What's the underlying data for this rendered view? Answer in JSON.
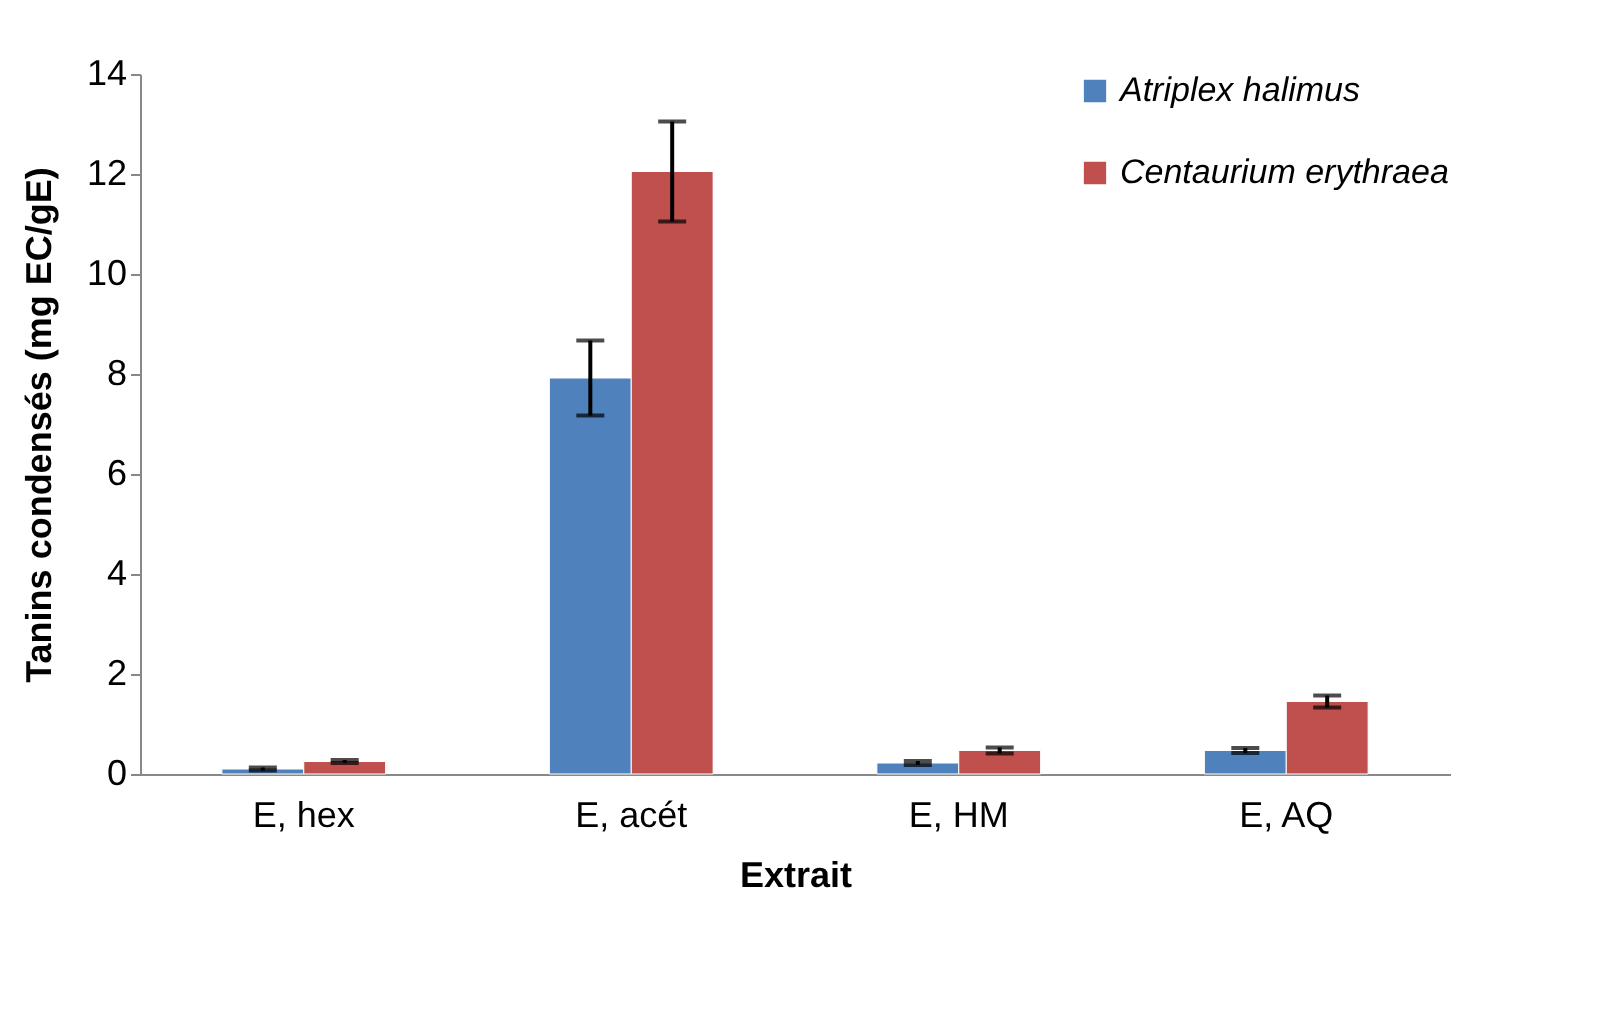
{
  "chart_data": {
    "type": "bar",
    "xlabel": "Extrait",
    "ylabel": "Tanins condensés (mg EC/gE)",
    "categories": [
      "E, hex",
      "E, acét",
      "E, HM",
      "E, AQ"
    ],
    "series": [
      {
        "name": "Atriplex halimus",
        "color": "#4f81bd",
        "values": [
          0.1,
          7.92,
          0.22,
          0.47
        ],
        "errors": [
          0.03,
          0.75,
          0.04,
          0.05
        ]
      },
      {
        "name": "Centaurium erythraea",
        "color": "#c0504d",
        "values": [
          0.25,
          12.05,
          0.47,
          1.45
        ],
        "errors": [
          0.03,
          1.0,
          0.06,
          0.12
        ]
      }
    ],
    "ylim": [
      0,
      14
    ],
    "yticks": [
      0,
      2,
      4,
      6,
      8,
      10,
      12,
      14
    ],
    "grid": false,
    "legend": "top right"
  }
}
